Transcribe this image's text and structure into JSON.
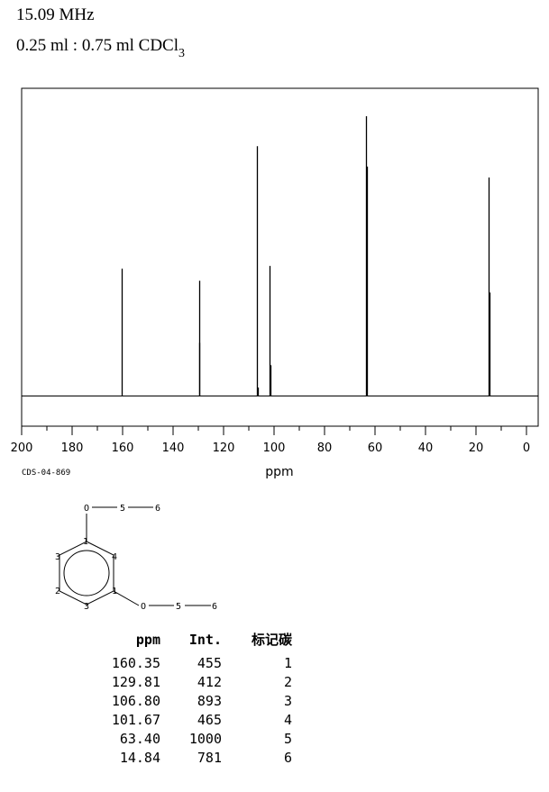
{
  "header": {
    "frequency": "15.09 MHz",
    "solvent_main": "0.25 ml : 0.75 ml CDCl",
    "solvent_sub": "3"
  },
  "chart_data": {
    "type": "line",
    "xlabel": "ppm",
    "xlim": [
      200,
      0
    ],
    "xticks": [
      200,
      180,
      160,
      140,
      120,
      100,
      80,
      60,
      40,
      20,
      0
    ],
    "ylim": [
      0,
      1000
    ],
    "grid": false,
    "peaks": [
      {
        "x": 160.35,
        "y": 455
      },
      {
        "x": 129.81,
        "y": 412
      },
      {
        "x": 129.5,
        "y": 190
      },
      {
        "x": 106.8,
        "y": 893
      },
      {
        "x": 106.5,
        "y": 30
      },
      {
        "x": 101.67,
        "y": 465
      },
      {
        "x": 101.4,
        "y": 110
      },
      {
        "x": 63.4,
        "y": 1000
      },
      {
        "x": 63.1,
        "y": 820
      },
      {
        "x": 14.84,
        "y": 781
      },
      {
        "x": 14.55,
        "y": 370
      }
    ]
  },
  "code": "CDS-04-869",
  "structure_labels": [
    "O",
    "5",
    "6",
    "1",
    "3",
    "4",
    "2",
    "1",
    "3",
    "O",
    "5",
    "6"
  ],
  "table": {
    "headers": [
      "ppm",
      "Int.",
      "标记碳"
    ],
    "rows": [
      [
        "160.35",
        "455",
        "1"
      ],
      [
        "129.81",
        "412",
        "2"
      ],
      [
        "106.80",
        "893",
        "3"
      ],
      [
        "101.67",
        "465",
        "4"
      ],
      [
        "63.40",
        "1000",
        "5"
      ],
      [
        "14.84",
        "781",
        "6"
      ]
    ]
  }
}
